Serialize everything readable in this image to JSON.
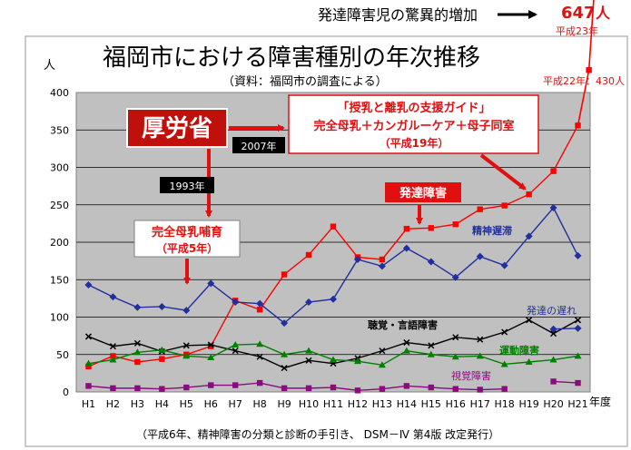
{
  "header": {
    "caption": "発達障害児の驚異的増加",
    "value_number": "647",
    "value_unit": "人",
    "value_era": "平成23年",
    "extra_label": "平成22年：430人"
  },
  "chart_data": {
    "type": "line",
    "title": "福岡市における障害種別の年次推移",
    "subtitle": "（資料：福岡市の調査による）",
    "ylabel": "人",
    "xlabel": "年度",
    "ylim": [
      0,
      400
    ],
    "yticks": [
      0,
      50,
      100,
      150,
      200,
      250,
      300,
      350,
      400
    ],
    "grid": true,
    "categories": [
      "H1",
      "H2",
      "H3",
      "H4",
      "H5",
      "H6",
      "H7",
      "H8",
      "H9",
      "H10",
      "H11",
      "H12",
      "H13",
      "H14",
      "H15",
      "H16",
      "H17",
      "H18",
      "H19",
      "H20",
      "H21"
    ],
    "series": [
      {
        "name": "発達障害",
        "color": "#ff0000",
        "marker": "square",
        "values": [
          34,
          48,
          40,
          44,
          50,
          61,
          122,
          110,
          157,
          183,
          221,
          180,
          177,
          218,
          219,
          224,
          244,
          249,
          264,
          295,
          356
        ]
      },
      {
        "name": "精神遅滞",
        "color": "#1f2fa0",
        "marker": "diamond",
        "values": [
          143,
          127,
          113,
          114,
          109,
          145,
          120,
          118,
          92,
          120,
          124,
          177,
          168,
          192,
          174,
          153,
          181,
          169,
          208,
          246,
          182
        ]
      },
      {
        "name": "聴覚・言語障害",
        "color": "#000000",
        "marker": "x",
        "values": [
          74,
          61,
          65,
          54,
          62,
          63,
          55,
          47,
          32,
          42,
          38,
          45,
          55,
          66,
          62,
          73,
          70,
          80,
          96,
          78,
          96
        ]
      },
      {
        "name": "運動障害",
        "color": "#008000",
        "marker": "triangle",
        "values": [
          38,
          43,
          53,
          56,
          48,
          46,
          63,
          64,
          50,
          55,
          43,
          41,
          36,
          55,
          50,
          47,
          48,
          37,
          40,
          43,
          48
        ]
      },
      {
        "name": "視覚障害",
        "color": "#8b0a7f",
        "marker": "square",
        "values": [
          8,
          5,
          5,
          4,
          6,
          9,
          9,
          12,
          5,
          5,
          6,
          2,
          4,
          8,
          6,
          4,
          3,
          4,
          null,
          14,
          12
        ]
      },
      {
        "name": "発達の遅れ",
        "color": "#1f2fa0",
        "marker": "diamond",
        "values": [
          null,
          null,
          null,
          null,
          null,
          null,
          null,
          null,
          null,
          null,
          null,
          null,
          null,
          null,
          null,
          null,
          null,
          null,
          null,
          84,
          85
        ]
      }
    ],
    "extrapolation": {
      "color": "#ff0000",
      "values": [
        430,
        647
      ]
    },
    "annotations": {
      "ministry": "厚労省",
      "year_2007": "2007年",
      "year_1993": "1993年",
      "guide_line1": "「授乳と離乳の支援ガイド」",
      "guide_line2": "完全母乳＋カンガルーケア＋母子同室",
      "guide_line3": "（平成19年）",
      "breastfeed_line1": "完全母乳哺育",
      "breastfeed_line2": "（平成5年）",
      "dev_disorder": "発達障害"
    },
    "footnote": "（平成6年、精神障害の分類と診断の手引き、 DSM－Ⅳ 第4版 改定発行）"
  }
}
